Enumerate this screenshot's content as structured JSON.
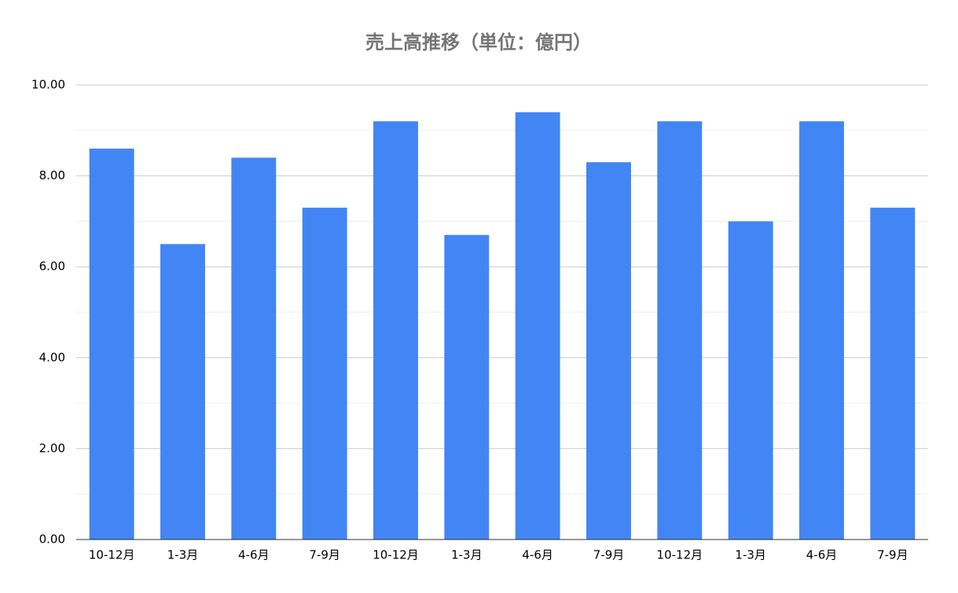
{
  "chart_data": {
    "type": "bar",
    "title": "売上高推移（単位：億円）",
    "categories": [
      "10-12月",
      "1-3月",
      "4-6月",
      "7-9月",
      "10-12月",
      "1-3月",
      "4-6月",
      "7-9月",
      "10-12月",
      "1-3月",
      "4-6月",
      "7-9月"
    ],
    "values": [
      8.6,
      6.5,
      8.4,
      7.3,
      9.2,
      6.7,
      9.4,
      8.3,
      9.2,
      7.0,
      9.2,
      7.3
    ],
    "color": "#4285f4",
    "ylim": [
      0,
      10
    ],
    "yticks": [
      {
        "value": 0,
        "label": "0.00"
      },
      {
        "value": 2,
        "label": "2.00"
      },
      {
        "value": 4,
        "label": "4.00"
      },
      {
        "value": 6,
        "label": "6.00"
      },
      {
        "value": 8,
        "label": "8.00"
      },
      {
        "value": 10,
        "label": "10.00"
      }
    ],
    "minor_yticks": [
      1,
      3,
      5,
      7,
      9
    ],
    "grid": true
  }
}
